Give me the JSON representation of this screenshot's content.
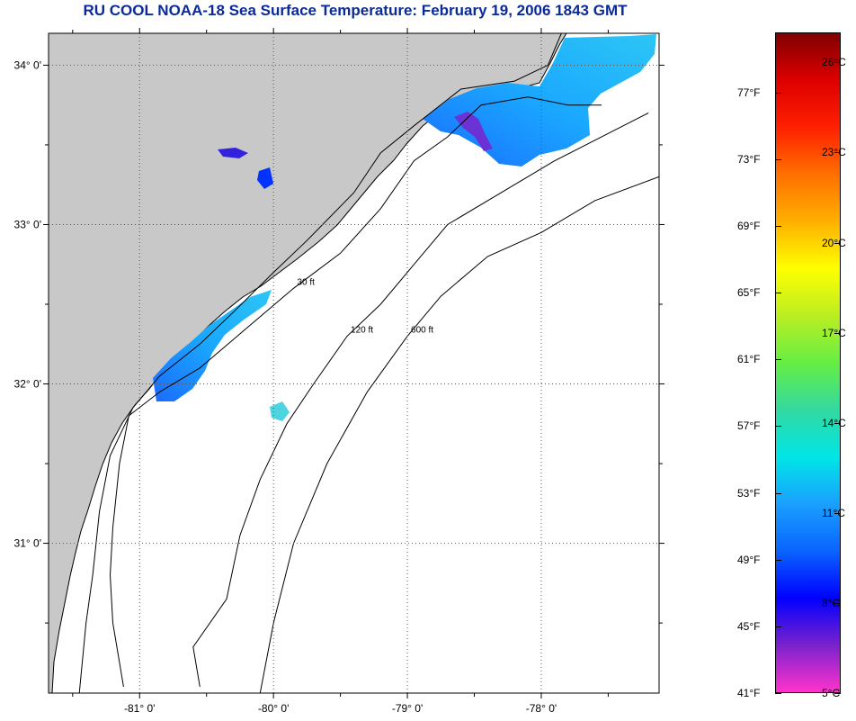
{
  "title": "RU COOL  NOAA-18  Sea Surface Temperature:  February 19, 2006 1843 GMT",
  "map": {
    "lon_min": -81.68,
    "lon_max": -77.12,
    "lat_min": 30.06,
    "lat_max": 34.2,
    "lon_ticks": [
      {
        "value": -81,
        "label": "-81° 0'"
      },
      {
        "value": -80,
        "label": "-80° 0'"
      },
      {
        "value": -79,
        "label": "-79° 0'"
      },
      {
        "value": -78,
        "label": "-78° 0'"
      }
    ],
    "lat_ticks": [
      {
        "value": 34,
        "label": "34° 0'"
      },
      {
        "value": 33,
        "label": "33° 0'"
      },
      {
        "value": 32,
        "label": "32° 0'"
      },
      {
        "value": 31,
        "label": "31° 0'"
      }
    ],
    "land_color": "#c8c8c8",
    "ocean_color": "#ffffff",
    "contours": [
      {
        "label": "30 ft",
        "points": [
          [
            -81.12,
            30.1
          ],
          [
            -81.2,
            30.5
          ],
          [
            -81.22,
            30.8
          ],
          [
            -81.2,
            31.1
          ],
          [
            -81.15,
            31.5
          ],
          [
            -81.08,
            31.8
          ],
          [
            -80.85,
            31.95
          ],
          [
            -80.55,
            32.1
          ],
          [
            -80.2,
            32.35
          ],
          [
            -79.85,
            32.6
          ],
          [
            -79.5,
            32.82
          ],
          [
            -79.2,
            33.1
          ],
          [
            -78.95,
            33.4
          ],
          [
            -78.7,
            33.55
          ],
          [
            -78.45,
            33.75
          ],
          [
            -78.1,
            33.8
          ],
          [
            -77.8,
            33.75
          ],
          [
            -77.55,
            33.75
          ]
        ]
      },
      {
        "label": "120 ft",
        "points": [
          [
            -80.55,
            30.1
          ],
          [
            -80.6,
            30.35
          ],
          [
            -80.35,
            30.65
          ],
          [
            -80.25,
            31.05
          ],
          [
            -80.1,
            31.4
          ],
          [
            -79.9,
            31.75
          ],
          [
            -79.7,
            32.0
          ],
          [
            -79.45,
            32.3
          ],
          [
            -79.2,
            32.5
          ],
          [
            -78.95,
            32.75
          ],
          [
            -78.7,
            33.0
          ],
          [
            -78.3,
            33.2
          ],
          [
            -77.9,
            33.4
          ],
          [
            -77.55,
            33.55
          ],
          [
            -77.2,
            33.7
          ]
        ]
      },
      {
        "label": "600 ft",
        "points": [
          [
            -80.1,
            30.06
          ],
          [
            -80.0,
            30.5
          ],
          [
            -79.85,
            31.0
          ],
          [
            -79.6,
            31.5
          ],
          [
            -79.3,
            31.95
          ],
          [
            -79.0,
            32.3
          ],
          [
            -78.75,
            32.55
          ],
          [
            -78.4,
            32.8
          ],
          [
            -78.0,
            32.95
          ],
          [
            -77.6,
            33.15
          ],
          [
            -77.12,
            33.3
          ]
        ]
      }
    ],
    "coastline": [
      [
        -81.45,
        30.06
      ],
      [
        -81.4,
        30.5
      ],
      [
        -81.35,
        30.8
      ],
      [
        -81.3,
        31.2
      ],
      [
        -81.22,
        31.55
      ],
      [
        -81.05,
        31.85
      ],
      [
        -80.85,
        32.05
      ],
      [
        -80.55,
        32.25
      ],
      [
        -80.3,
        32.45
      ],
      [
        -80.0,
        32.7
      ],
      [
        -79.75,
        32.9
      ],
      [
        -79.4,
        33.2
      ],
      [
        -79.2,
        33.45
      ],
      [
        -78.95,
        33.62
      ],
      [
        -78.6,
        33.85
      ],
      [
        -78.2,
        33.9
      ],
      [
        -77.95,
        34.0
      ],
      [
        -77.85,
        34.2
      ]
    ]
  },
  "colorbar": {
    "min_c": 5,
    "max_c": 27,
    "stops": [
      "#ff33cc",
      "#7a22cc",
      "#0000ff",
      "#0a64ff",
      "#1aa0ff",
      "#00e6e6",
      "#33d9a0",
      "#66ee44",
      "#bbee22",
      "#ffff00",
      "#ffb000",
      "#ff7000",
      "#ff2000",
      "#dd0000",
      "#800000"
    ],
    "celsius_labels": [
      {
        "value": 5,
        "label": "5°C"
      },
      {
        "value": 8,
        "label": "8°C"
      },
      {
        "value": 11,
        "label": "11°C"
      },
      {
        "value": 14,
        "label": "14°C"
      },
      {
        "value": 17,
        "label": "17°C"
      },
      {
        "value": 20,
        "label": "20°C"
      },
      {
        "value": 23,
        "label": "23°C"
      },
      {
        "value": 26,
        "label": "26°C"
      }
    ],
    "fahrenheit_labels": [
      {
        "value": 41,
        "label": "41°F"
      },
      {
        "value": 45,
        "label": "45°F"
      },
      {
        "value": 49,
        "label": "49°F"
      },
      {
        "value": 53,
        "label": "53°F"
      },
      {
        "value": 57,
        "label": "57°F"
      },
      {
        "value": 61,
        "label": "61°F"
      },
      {
        "value": 65,
        "label": "65°F"
      },
      {
        "value": 69,
        "label": "69°F"
      },
      {
        "value": 73,
        "label": "73°F"
      },
      {
        "value": 77,
        "label": "77°F"
      }
    ]
  }
}
